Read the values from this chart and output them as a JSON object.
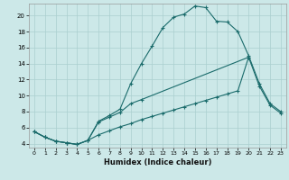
{
  "xlabel": "Humidex (Indice chaleur)",
  "background_color": "#cce8e8",
  "grid_color": "#aacfcf",
  "line_color": "#1a6b6b",
  "ylim": [
    3.5,
    21.5
  ],
  "xlim": [
    -0.5,
    23.5
  ],
  "yticks": [
    4,
    6,
    8,
    10,
    12,
    14,
    16,
    18,
    20
  ],
  "xticks": [
    0,
    1,
    2,
    3,
    4,
    5,
    6,
    7,
    8,
    9,
    10,
    11,
    12,
    13,
    14,
    15,
    16,
    17,
    18,
    19,
    20,
    21,
    22,
    23
  ],
  "s1x": [
    0,
    1,
    2,
    3,
    4,
    5,
    6,
    7,
    8,
    9,
    10,
    11,
    12,
    13,
    14,
    15,
    16,
    17,
    18,
    19,
    20,
    21,
    22,
    23
  ],
  "s1y": [
    5.5,
    4.8,
    4.3,
    4.1,
    3.9,
    4.4,
    6.8,
    7.5,
    8.3,
    11.5,
    14.0,
    16.2,
    18.5,
    19.8,
    20.2,
    21.2,
    21.0,
    19.3,
    19.2,
    18.0,
    15.0,
    11.5,
    9.0,
    8.0
  ],
  "s2x": [
    0,
    1,
    2,
    3,
    4,
    5,
    6,
    7,
    8,
    9,
    10,
    20,
    21,
    22,
    23
  ],
  "s2y": [
    5.5,
    4.8,
    4.3,
    4.1,
    3.9,
    4.4,
    6.7,
    7.3,
    7.9,
    9.0,
    9.5,
    14.8,
    11.2,
    8.8,
    7.8
  ],
  "s3x": [
    0,
    1,
    2,
    3,
    4,
    5,
    6,
    7,
    8,
    9,
    10,
    11,
    12,
    13,
    14,
    15,
    16,
    17,
    18,
    19,
    20,
    21,
    22,
    23
  ],
  "s3y": [
    5.5,
    4.8,
    4.3,
    4.1,
    3.9,
    4.4,
    5.1,
    5.6,
    6.1,
    6.5,
    7.0,
    7.4,
    7.8,
    8.2,
    8.6,
    9.0,
    9.4,
    9.8,
    10.2,
    10.6,
    14.8,
    null,
    null,
    null
  ]
}
